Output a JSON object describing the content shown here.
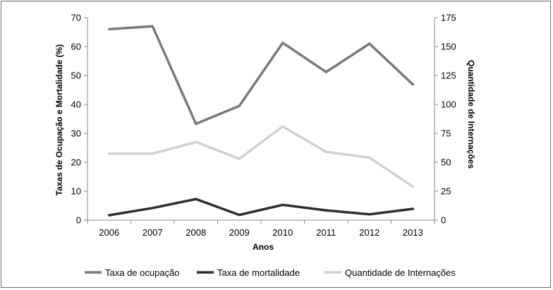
{
  "chart_data": {
    "type": "line",
    "title": "",
    "xlabel": "Anos",
    "ylabel_left": "Taxas de Ocupação e Mortalidade (%)",
    "ylabel_right": "Quantidade de Internações",
    "categories": [
      "2006",
      "2007",
      "2008",
      "2009",
      "2010",
      "2011",
      "2012",
      "2013"
    ],
    "ylim_left": [
      0,
      70
    ],
    "yticks_left": [
      "0",
      "10",
      "20",
      "30",
      "40",
      "50",
      "60",
      "70"
    ],
    "ylim_right": [
      0,
      175
    ],
    "yticks_right": [
      "0",
      "25",
      "50",
      "75",
      "100",
      "125",
      "150",
      "175"
    ],
    "grid": false,
    "legend_position": "bottom",
    "series": [
      {
        "name": "Taxa de ocupação",
        "axis": "left",
        "color": "#7a7a7a",
        "values": [
          66,
          67,
          33.3,
          39.5,
          61.3,
          51.2,
          61,
          46.9
        ]
      },
      {
        "name": "Taxa de mortalidade",
        "axis": "left",
        "color": "#2e2e2e",
        "values": [
          1.7,
          4.2,
          7.3,
          1.8,
          5.3,
          3.4,
          2.0,
          3.9
        ]
      },
      {
        "name": "Quantidade de Internações",
        "axis": "right",
        "color": "#cfcfcf",
        "values": [
          57.5,
          57.5,
          67.5,
          53,
          81,
          59,
          54,
          29
        ]
      }
    ]
  }
}
